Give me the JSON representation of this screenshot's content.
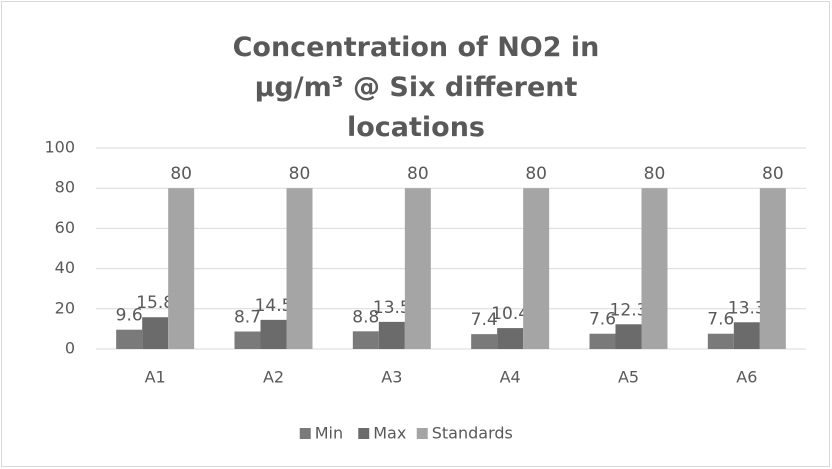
{
  "chart_data": {
    "type": "bar",
    "title": "Concentration of NO2 in μg/m³ @ Six different locations",
    "categories": [
      "A1",
      "A2",
      "A3",
      "A4",
      "A5",
      "A6"
    ],
    "series": [
      {
        "name": "Min",
        "color": "#7a7a7a",
        "values": [
          9.6,
          8.7,
          8.8,
          7.4,
          7.6,
          7.6
        ]
      },
      {
        "name": "Max",
        "color": "#6b6b6b",
        "values": [
          15.8,
          14.5,
          13.5,
          10.4,
          12.3,
          13.3
        ]
      },
      {
        "name": "Standards",
        "color": "#a5a5a5",
        "values": [
          80,
          80,
          80,
          80,
          80,
          80
        ]
      }
    ],
    "ylim": [
      0,
      100
    ],
    "yticks": [
      0,
      20,
      40,
      60,
      80,
      100
    ],
    "grid": true,
    "legend": "bottom"
  }
}
